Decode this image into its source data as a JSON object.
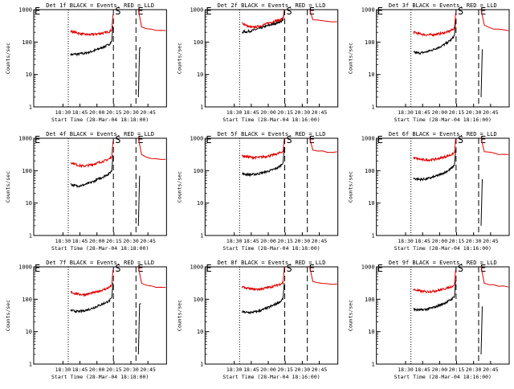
{
  "layout": {
    "rows": 3,
    "cols": 3
  },
  "colors": {
    "events": "#000000",
    "lld": "#e00000",
    "axes": "#000000"
  },
  "chart_data": [
    {
      "type": "line",
      "title": "Det 1f BLACK = Events, RED = LLD",
      "xlabel": "Start Time (28-Mar-04 18:18:00)",
      "ylabel": "Counts/sec",
      "x_ticks": [
        "18:30",
        "18:45",
        "20:00",
        "20:15",
        "20:30",
        "20:45"
      ],
      "y_ticks": [
        "1",
        "10",
        "100",
        "1000"
      ],
      "yscale": "log",
      "ylim": [
        1,
        1000
      ],
      "markers": [
        "S",
        "E"
      ],
      "series": [
        {
          "name": "Events",
          "values": [
            42,
            41,
            43,
            42,
            43,
            45,
            44,
            46,
            48,
            50,
            52,
            55,
            58,
            62,
            66,
            70,
            75,
            80,
            88,
            105
          ]
        },
        {
          "name": "LLD",
          "values": [
            215,
            205,
            200,
            192,
            185,
            180,
            175,
            172,
            170,
            170,
            172,
            175,
            178,
            182,
            186,
            190,
            196,
            204,
            215,
            240
          ]
        }
      ],
      "post_E": {
        "events": [
          60,
          65,
          68
        ],
        "lld": [
          300,
          260,
          240,
          230,
          225,
          220
        ]
      }
    },
    {
      "type": "line",
      "title": "Det 2f BLACK = Events, RED = LLD",
      "xlabel": "Start Time (28-Mar-04 18:16:00)",
      "ylabel": "Counts/sec",
      "x_ticks": [
        "18:30",
        "18:45",
        "20:00",
        "20:15",
        "20:30",
        "20:45"
      ],
      "y_ticks": [
        "1",
        "10",
        "100",
        "1000"
      ],
      "yscale": "log",
      "ylim": [
        1,
        1000
      ],
      "markers": [
        "S",
        "E"
      ],
      "series": [
        {
          "name": "Events",
          "values": [
            200,
            210,
            205,
            215,
            220,
            230,
            240,
            250,
            262,
            275,
            290,
            305,
            320,
            340,
            355,
            370,
            390,
            410,
            430,
            470
          ]
        },
        {
          "name": "LLD",
          "values": [
            380,
            360,
            330,
            300,
            290,
            285,
            290,
            300,
            310,
            325,
            340,
            360,
            380,
            400,
            420,
            440,
            460,
            480,
            500,
            560
          ]
        }
      ],
      "post_E": {
        "events": [],
        "lld": [
          500,
          460,
          440,
          430,
          420,
          410
        ]
      }
    },
    {
      "type": "line",
      "title": "Det 3f BLACK = Events, RED = LLD",
      "xlabel": "Start Time (28-Mar-04 18:16:00)",
      "ylabel": "Counts/sec",
      "x_ticks": [
        "18:30",
        "18:45",
        "20:00",
        "20:15",
        "20:30",
        "20:45"
      ],
      "y_ticks": [
        "1",
        "10",
        "100",
        "1000"
      ],
      "yscale": "log",
      "ylim": [
        1,
        1000
      ],
      "markers": [
        "S",
        "E"
      ],
      "series": [
        {
          "name": "Events",
          "values": [
            48,
            47,
            46,
            46,
            47,
            48,
            50,
            52,
            55,
            58,
            62,
            66,
            70,
            75,
            82,
            90,
            100,
            112,
            128,
            160
          ]
        },
        {
          "name": "LLD",
          "values": [
            205,
            195,
            188,
            180,
            175,
            170,
            168,
            166,
            168,
            170,
            172,
            176,
            180,
            186,
            192,
            200,
            210,
            222,
            240,
            270
          ]
        }
      ],
      "post_E": {
        "events": [
          50,
          60
        ],
        "lld": [
          320,
          280,
          260,
          250,
          240,
          235
        ]
      }
    },
    {
      "type": "line",
      "title": "Det 4f BLACK = Events, RED = LLD",
      "xlabel": "Start Time (28-Mar-04 18:18:00)",
      "ylabel": "Counts/sec",
      "x_ticks": [
        "18:30",
        "18:45",
        "20:00",
        "20:15",
        "20:30",
        "20:45"
      ],
      "y_ticks": [
        "1",
        "10",
        "100",
        "1000"
      ],
      "yscale": "log",
      "ylim": [
        1,
        1000
      ],
      "markers": [
        "S",
        "E"
      ],
      "series": [
        {
          "name": "Events",
          "values": [
            38,
            36,
            35,
            34,
            34,
            35,
            36,
            38,
            40,
            42,
            45,
            48,
            52,
            56,
            60,
            65,
            70,
            76,
            84,
            100
          ]
        },
        {
          "name": "LLD",
          "values": [
            180,
            170,
            160,
            150,
            145,
            140,
            140,
            142,
            145,
            150,
            156,
            162,
            170,
            178,
            186,
            195,
            205,
            218,
            235,
            270
          ]
        }
      ],
      "post_E": {
        "events": [
          60,
          70
        ],
        "lld": [
          300,
          270,
          250,
          240,
          232,
          225
        ]
      }
    },
    {
      "type": "line",
      "title": "Det 5f BLACK = Events, RED = LLD",
      "xlabel": "Start Time (28-Mar-04 18:18:00)",
      "ylabel": "Counts/sec",
      "x_ticks": [
        "18:30",
        "18:45",
        "20:00",
        "20:15",
        "20:30",
        "20:45"
      ],
      "y_ticks": [
        "1",
        "10",
        "100",
        "1000"
      ],
      "yscale": "log",
      "ylim": [
        1,
        1000
      ],
      "markers": [
        "S",
        "E"
      ],
      "series": [
        {
          "name": "Events",
          "values": [
            80,
            78,
            77,
            76,
            76,
            77,
            78,
            80,
            82,
            85,
            88,
            92,
            96,
            100,
            106,
            112,
            120,
            130,
            145,
            180
          ]
        },
        {
          "name": "LLD",
          "values": [
            290,
            280,
            272,
            265,
            260,
            256,
            255,
            256,
            258,
            262,
            268,
            275,
            283,
            292,
            302,
            314,
            328,
            344,
            365,
            400
          ]
        }
      ],
      "post_E": {
        "events": [],
        "lld": [
          420,
          400,
          390,
          380,
          375,
          370
        ]
      }
    },
    {
      "type": "line",
      "title": "Det 6f BLACK = Events, RED = LLD",
      "xlabel": "Start Time (28-Mar-04 18:16:00)",
      "ylabel": "Counts/sec",
      "x_ticks": [
        "18:30",
        "18:45",
        "20:00",
        "20:15",
        "20:30",
        "20:45"
      ],
      "y_ticks": [
        "1",
        "10",
        "100",
        "1000"
      ],
      "yscale": "log",
      "ylim": [
        1,
        1000
      ],
      "markers": [
        "S",
        "E"
      ],
      "series": [
        {
          "name": "Events",
          "values": [
            58,
            56,
            55,
            54,
            54,
            55,
            56,
            58,
            60,
            63,
            66,
            70,
            74,
            79,
            85,
            92,
            100,
            110,
            124,
            150
          ]
        },
        {
          "name": "LLD",
          "values": [
            250,
            240,
            232,
            225,
            220,
            216,
            214,
            214,
            216,
            220,
            225,
            232,
            240,
            250,
            260,
            272,
            286,
            302,
            322,
            360
          ]
        }
      ],
      "post_E": {
        "events": [
          40,
          55
        ],
        "lld": [
          400,
          360,
          340,
          320,
          310,
          300
        ]
      }
    },
    {
      "type": "line",
      "title": "Det 7f BLACK = Events, RED = LLD",
      "xlabel": "Start Time (28-Mar-04 18:18:00)",
      "ylabel": "Counts/sec",
      "x_ticks": [
        "18:30",
        "18:45",
        "20:00",
        "20:15",
        "20:30",
        "20:45"
      ],
      "y_ticks": [
        "1",
        "10",
        "100",
        "1000"
      ],
      "yscale": "log",
      "ylim": [
        1,
        1000
      ],
      "markers": [
        "S",
        "E"
      ],
      "series": [
        {
          "name": "Events",
          "values": [
            46,
            44,
            43,
            42,
            42,
            43,
            44,
            46,
            48,
            50,
            53,
            56,
            60,
            64,
            68,
            73,
            78,
            84,
            92,
            108
          ]
        },
        {
          "name": "LLD",
          "values": [
            165,
            158,
            152,
            146,
            142,
            140,
            140,
            142,
            146,
            150,
            156,
            162,
            170,
            178,
            186,
            196,
            206,
            220,
            238,
            270
          ]
        }
      ],
      "post_E": {
        "events": [
          55,
          70,
          75
        ],
        "lld": [
          300,
          270,
          250,
          240,
          232,
          225
        ]
      }
    },
    {
      "type": "line",
      "title": "Det 8f BLACK = Events, RED = LLD",
      "xlabel": "Start Time (28-Mar-04 18:16:00)",
      "ylabel": "Counts/sec",
      "x_ticks": [
        "18:30",
        "18:45",
        "20:00",
        "20:15",
        "20:30",
        "20:45"
      ],
      "y_ticks": [
        "1",
        "10",
        "100",
        "1000"
      ],
      "yscale": "log",
      "ylim": [
        1,
        1000
      ],
      "markers": [
        "S",
        "E"
      ],
      "series": [
        {
          "name": "Events",
          "values": [
            42,
            40,
            39,
            39,
            39,
            40,
            41,
            42,
            44,
            46,
            49,
            52,
            55,
            59,
            63,
            68,
            74,
            80,
            88,
            105
          ]
        },
        {
          "name": "LLD",
          "values": [
            240,
            230,
            222,
            215,
            210,
            206,
            204,
            204,
            206,
            210,
            215,
            222,
            230,
            238,
            248,
            258,
            270,
            284,
            300,
            330
          ]
        }
      ],
      "post_E": {
        "events": [],
        "lld": [
          360,
          330,
          310,
          300,
          292,
          285
        ]
      }
    },
    {
      "type": "line",
      "title": "Det 9f BLACK = Events, RED = LLD",
      "xlabel": "Start Time (28-Mar-04 18:16:00)",
      "ylabel": "Counts/sec",
      "x_ticks": [
        "18:30",
        "18:45",
        "20:00",
        "20:15",
        "20:30",
        "20:45"
      ],
      "y_ticks": [
        "1",
        "10",
        "100",
        "1000"
      ],
      "yscale": "log",
      "ylim": [
        1,
        1000
      ],
      "markers": [
        "S",
        "E"
      ],
      "series": [
        {
          "name": "Events",
          "values": [
            50,
            48,
            47,
            47,
            47,
            48,
            49,
            51,
            53,
            55,
            58,
            61,
            65,
            69,
            74,
            80,
            86,
            94,
            104,
            125
          ]
        },
        {
          "name": "LLD",
          "values": [
            200,
            192,
            186,
            180,
            176,
            173,
            172,
            172,
            174,
            177,
            181,
            186,
            192,
            199,
            207,
            216,
            226,
            238,
            252,
            280
          ]
        }
      ],
      "post_E": {
        "events": [
          45,
          60
        ],
        "lld": [
          320,
          290,
          270,
          258,
          250,
          245
        ]
      }
    }
  ]
}
